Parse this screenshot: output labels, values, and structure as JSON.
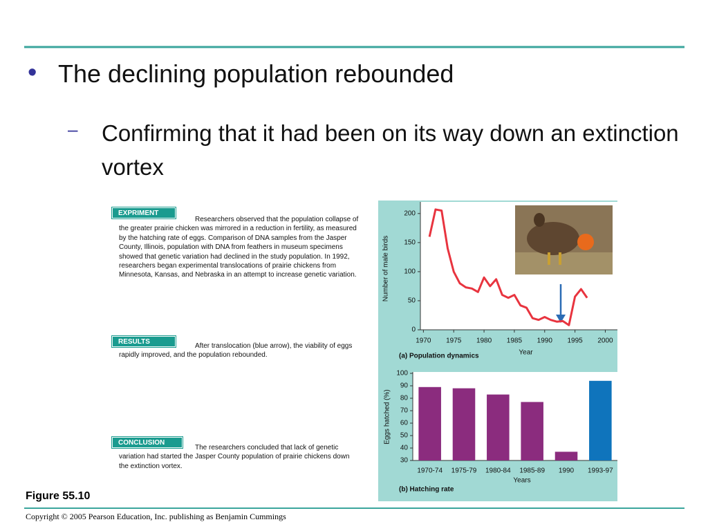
{
  "slide": {
    "bullet": "The declining population rebounded",
    "sub_bullet": "Confirming that it had been on its way down an extinction vortex",
    "figure_label": "Figure 55.10",
    "copyright": "Copyright © 2005 Pearson Education, Inc. publishing as Benjamin Cummings"
  },
  "panels": [
    {
      "label": "EXPRIMENT",
      "text": "Researchers observed that the population collapse of the greater prairie chicken was mirrored in a reduction in fertility, as measured by the hatching rate of eggs. Comparison of DNA samples from the Jasper County, Illinois, population with DNA from feathers in museum specimens showed that genetic variation had declined in the study population. In 1992, researchers began experimental translocations of prairie chickens from Minnesota, Kansas, and Nebraska in an attempt to increase genetic variation."
    },
    {
      "label": "RESULTS",
      "text": "After translocation (blue arrow), the viability of eggs rapidly improved, and the population rebounded."
    },
    {
      "label": "CONCLUSION",
      "text": "The researchers concluded that lack of genetic variation had started the Jasper County population of prairie chickens down the extinction vortex."
    }
  ],
  "chart_data": [
    {
      "type": "line",
      "caption": "(a) Population dynamics",
      "xlabel": "Year",
      "ylabel": "Number of male birds",
      "x": [
        1971,
        1972,
        1973,
        1974,
        1975,
        1976,
        1977,
        1978,
        1979,
        1980,
        1981,
        1982,
        1983,
        1984,
        1985,
        1986,
        1987,
        1988,
        1989,
        1990,
        1991,
        1992,
        1993,
        1994,
        1995,
        1996,
        1997
      ],
      "values": [
        160,
        207,
        205,
        140,
        100,
        80,
        73,
        71,
        65,
        90,
        75,
        87,
        60,
        55,
        60,
        42,
        38,
        20,
        17,
        22,
        17,
        14,
        15,
        8,
        57,
        70,
        55
      ],
      "color": "#e8343f",
      "xlim": [
        1969.5,
        2002
      ],
      "xticks": [
        1970,
        1975,
        1980,
        1985,
        1990,
        1995,
        2000
      ],
      "ylim": [
        0,
        220
      ],
      "yticks": [
        0,
        50,
        100,
        150,
        200
      ]
    },
    {
      "type": "bar",
      "caption": "(b) Hatching rate",
      "xlabel": "Years",
      "ylabel": "Eggs hatched (%)",
      "categories": [
        "1970-74",
        "1975-79",
        "1980-84",
        "1985-89",
        "1990",
        "1993-97"
      ],
      "values": [
        89,
        88,
        83,
        77,
        37,
        94
      ],
      "colors": [
        "#8b2c7e",
        "#8b2c7e",
        "#8b2c7e",
        "#8b2c7e",
        "#8b2c7e",
        "#0f74bc"
      ],
      "ylim": [
        30,
        100
      ],
      "yticks": [
        30,
        40,
        50,
        60,
        70,
        80,
        90,
        100
      ]
    }
  ]
}
